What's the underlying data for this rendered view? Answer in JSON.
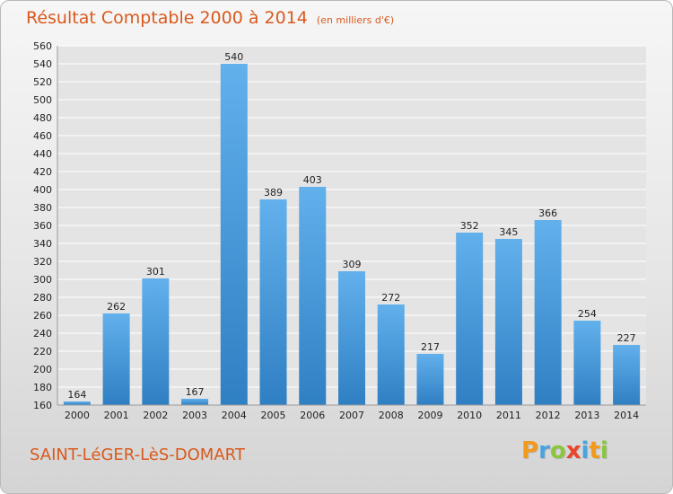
{
  "header": {
    "title": "Résultat Comptable 2000 à 2014",
    "subtitle": "(en milliers d'€)"
  },
  "footer": {
    "commune": "SAINT-LéGER-LèS-DOMART",
    "logo_letters": [
      "P",
      "r",
      "o",
      "x",
      "i",
      "t",
      "i"
    ],
    "logo_colors": [
      "#f29a1c",
      "#4aa3df",
      "#8cc63f",
      "#e8452c",
      "#4aa3df",
      "#f29a1c",
      "#8cc63f"
    ]
  },
  "colors": {
    "bar_light": "#62b0ec",
    "bar_dark": "#2f7fc3",
    "grid": "#ffffff",
    "plot_bg": "#e4e4e4",
    "text": "#222222"
  },
  "chart_data": {
    "type": "bar",
    "title": "Résultat Comptable 2000 à 2014",
    "subtitle": "(en milliers d'€)",
    "categories": [
      "2000",
      "2001",
      "2002",
      "2003",
      "2004",
      "2005",
      "2006",
      "2007",
      "2008",
      "2009",
      "2010",
      "2011",
      "2012",
      "2013",
      "2014"
    ],
    "values": [
      164,
      262,
      301,
      167,
      540,
      389,
      403,
      309,
      272,
      217,
      352,
      345,
      366,
      254,
      227
    ],
    "ylim": [
      160,
      560
    ],
    "ytick_step": 20,
    "grid": true,
    "data_labels": true
  }
}
